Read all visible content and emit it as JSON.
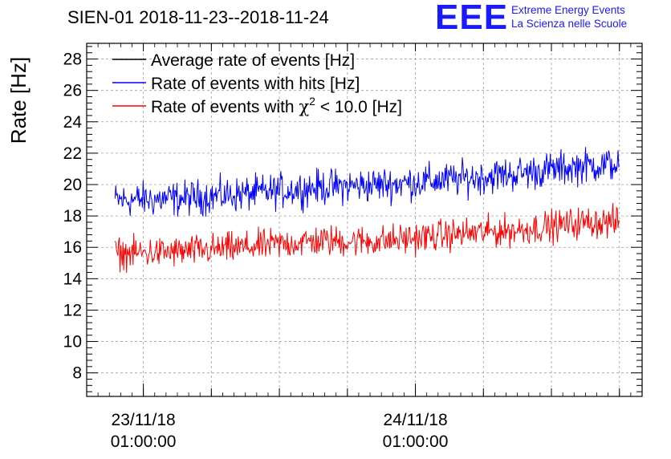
{
  "header": {
    "title": "SIEN-01 2018-11-23--2018-11-24",
    "logo_mark": "EEE",
    "logo_line1": "Extreme Energy Events",
    "logo_line2": "La Scienza nelle Scuole"
  },
  "colors": {
    "average": "#000000",
    "hits": "#0000ff",
    "chi2": "#ff0000",
    "grid": "#a0a0a0",
    "logo": "#1a1aff"
  },
  "chart_data": {
    "type": "line",
    "title": "SIEN-01 2018-11-23--2018-11-24",
    "xlabel": "",
    "ylabel": "Rate [Hz]",
    "ylim": [
      6.5,
      29
    ],
    "y_ticks": [
      8,
      10,
      12,
      14,
      16,
      18,
      20,
      22,
      24,
      26,
      28
    ],
    "x_ticks": [
      {
        "date": "23/11/18",
        "time": "01:00:00"
      },
      {
        "date": "24/11/18",
        "time": "01:00:00"
      }
    ],
    "x_range_hours": [
      "2018-11-22 20:00",
      "2018-11-24 21:00"
    ],
    "grid": true,
    "legend_position": "top-left",
    "legend": [
      {
        "label": "Average rate of events [Hz]",
        "color": "#000000"
      },
      {
        "label": "Rate of events with hits [Hz]",
        "color": "#0000ff"
      },
      {
        "label_prefix": "Rate of events with ",
        "label_symbol": "χ",
        "label_sup": "2",
        "label_suffix": " < 10.0 [Hz]",
        "color": "#ff0000"
      }
    ],
    "series": [
      {
        "name": "Rate of events with hits [Hz]",
        "color": "#0000ff",
        "x": [
          "2018-11-22 22:30",
          "2018-11-23 04:00",
          "2018-11-23 10:00",
          "2018-11-23 16:00",
          "2018-11-23 22:00",
          "2018-11-24 04:00",
          "2018-11-24 10:00",
          "2018-11-24 16:00",
          "2018-11-24 19:00"
        ],
        "y": [
          19.0,
          19.1,
          19.4,
          19.8,
          20.0,
          20.3,
          20.7,
          21.2,
          21.3
        ],
        "noise": 1.0
      },
      {
        "name": "Rate of events with χ² < 10.0 [Hz]",
        "color": "#ff0000",
        "x": [
          "2018-11-22 22:30",
          "2018-11-23 04:00",
          "2018-11-23 10:00",
          "2018-11-23 16:00",
          "2018-11-23 22:00",
          "2018-11-24 04:00",
          "2018-11-24 10:00",
          "2018-11-24 16:00",
          "2018-11-24 19:00"
        ],
        "y": [
          15.6,
          15.7,
          16.0,
          16.4,
          16.4,
          16.8,
          17.1,
          17.6,
          17.6
        ],
        "noise": 0.9
      }
    ]
  }
}
